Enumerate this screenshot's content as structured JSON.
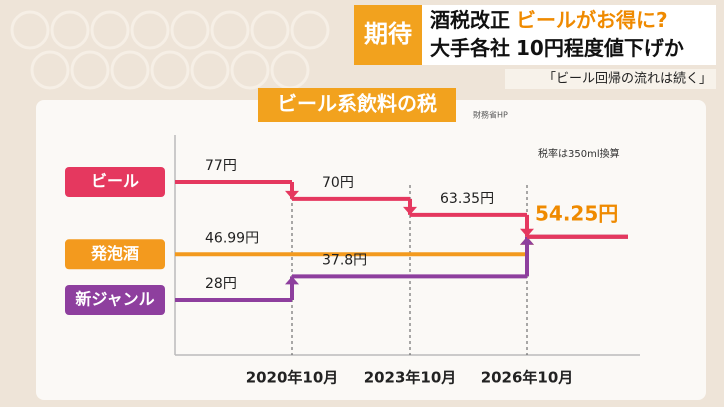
{
  "header": {
    "badge": "期待",
    "line1_a": "酒税改正",
    "line1_b": "ビールがお得に?",
    "line2_a": "大手各社",
    "line2_b": "10円程度値下げか",
    "quote": "「ビール回帰の流れは続く」"
  },
  "chart_data": {
    "type": "step",
    "title": "ビール系飲料の税",
    "source": "財務省HP",
    "note": "税率は350ml換算",
    "categories": [
      null,
      "2020年10月",
      "2023年10月",
      "2026年10月"
    ],
    "series": [
      {
        "name": "発泡酒",
        "color": "#f39a1e",
        "values": [
          46.99,
          46.99,
          46.99,
          54.25
        ],
        "value_labels": [
          "46.99円",
          null,
          null,
          null
        ]
      },
      {
        "name": "新ジャンル",
        "color": "#8e3f9e",
        "values": [
          28,
          37.8,
          37.8,
          54.25
        ],
        "value_labels": [
          "28円",
          "37.8円",
          null,
          null
        ]
      },
      {
        "name": "ビール",
        "color": "#e5385f",
        "values": [
          77,
          70,
          63.35,
          54.25
        ],
        "value_labels": [
          "77円",
          "70円",
          "63.35円",
          "54.25円"
        ]
      }
    ]
  }
}
